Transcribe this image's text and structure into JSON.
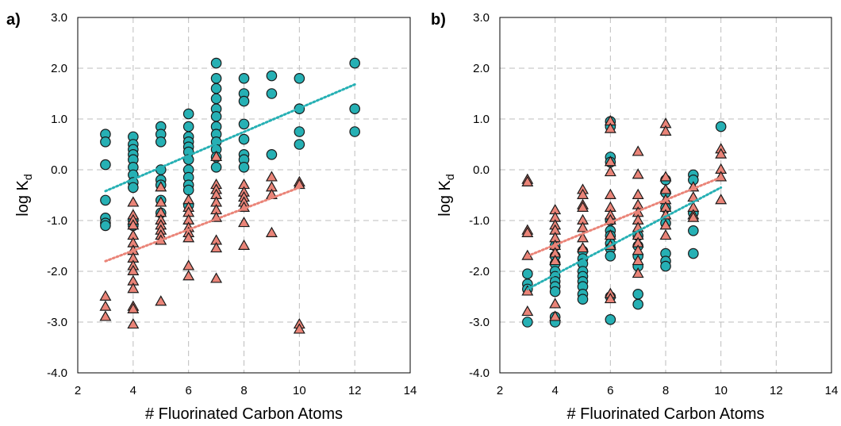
{
  "chart_data": [
    {
      "type": "scatter",
      "panel_label": "a)",
      "xlabel": "# Fluorinated Carbon Atoms",
      "ylabel_main": "log K",
      "ylabel_sub": "d",
      "xlim": [
        2,
        14
      ],
      "ylim": [
        -4,
        3
      ],
      "x_ticks": [
        "2",
        "4",
        "6",
        "8",
        "10",
        "12",
        "14"
      ],
      "y_ticks": [
        "-4.0",
        "-3.0",
        "-2.0",
        "-1.0",
        "0.0",
        "1.0",
        "2.0",
        "3.0"
      ],
      "grid": true,
      "series": [
        {
          "marker": "circle",
          "color": "#26b0b4",
          "points": [
            [
              3,
              0.7
            ],
            [
              3,
              0.55
            ],
            [
              3,
              0.1
            ],
            [
              3,
              -0.6
            ],
            [
              3,
              -0.95
            ],
            [
              3,
              -1.05
            ],
            [
              3,
              -1.1
            ],
            [
              4,
              0.65
            ],
            [
              4,
              0.5
            ],
            [
              4,
              0.4
            ],
            [
              4,
              0.3
            ],
            [
              4,
              0.2
            ],
            [
              4,
              0.05
            ],
            [
              4,
              -0.1
            ],
            [
              4,
              -0.25
            ],
            [
              4,
              -0.35
            ],
            [
              4,
              -1.0
            ],
            [
              4,
              -1.1
            ],
            [
              5,
              0.85
            ],
            [
              5,
              0.7
            ],
            [
              5,
              0.55
            ],
            [
              5,
              0.0
            ],
            [
              5,
              -0.2
            ],
            [
              5,
              -0.3
            ],
            [
              5,
              -0.6
            ],
            [
              5,
              -0.85
            ],
            [
              6,
              1.1
            ],
            [
              6,
              0.85
            ],
            [
              6,
              0.65
            ],
            [
              6,
              0.55
            ],
            [
              6,
              0.45
            ],
            [
              6,
              0.35
            ],
            [
              6,
              0.2
            ],
            [
              6,
              0.0
            ],
            [
              6,
              -0.15
            ],
            [
              6,
              -0.3
            ],
            [
              6,
              -0.4
            ],
            [
              6,
              -0.7
            ],
            [
              7,
              2.1
            ],
            [
              7,
              1.8
            ],
            [
              7,
              1.6
            ],
            [
              7,
              1.4
            ],
            [
              7,
              1.2
            ],
            [
              7,
              1.05
            ],
            [
              7,
              0.85
            ],
            [
              7,
              0.7
            ],
            [
              7,
              0.55
            ],
            [
              7,
              0.4
            ],
            [
              7,
              0.25
            ],
            [
              7,
              0.05
            ],
            [
              8,
              1.8
            ],
            [
              8,
              1.5
            ],
            [
              8,
              1.35
            ],
            [
              8,
              0.9
            ],
            [
              8,
              0.6
            ],
            [
              8,
              0.3
            ],
            [
              8,
              0.2
            ],
            [
              8,
              0.05
            ],
            [
              9,
              1.85
            ],
            [
              9,
              1.5
            ],
            [
              9,
              0.3
            ],
            [
              10,
              1.8
            ],
            [
              10,
              1.2
            ],
            [
              10,
              0.75
            ],
            [
              10,
              0.5
            ],
            [
              12,
              2.1
            ],
            [
              12,
              1.2
            ],
            [
              12,
              0.75
            ]
          ]
        },
        {
          "marker": "triangle",
          "color": "#ea8478",
          "points": [
            [
              3,
              -2.5
            ],
            [
              3,
              -2.7
            ],
            [
              3,
              -2.9
            ],
            [
              4,
              -0.65
            ],
            [
              4,
              -0.9
            ],
            [
              4,
              -1.0
            ],
            [
              4,
              -1.1
            ],
            [
              4,
              -1.3
            ],
            [
              4,
              -1.45
            ],
            [
              4,
              -1.6
            ],
            [
              4,
              -1.75
            ],
            [
              4,
              -1.9
            ],
            [
              4,
              -2.0
            ],
            [
              4,
              -2.2
            ],
            [
              4,
              -2.35
            ],
            [
              4,
              -2.7
            ],
            [
              4,
              -2.75
            ],
            [
              4,
              -3.05
            ],
            [
              5,
              -0.35
            ],
            [
              5,
              -0.65
            ],
            [
              5,
              -0.85
            ],
            [
              5,
              -1.0
            ],
            [
              5,
              -1.1
            ],
            [
              5,
              -1.2
            ],
            [
              5,
              -1.3
            ],
            [
              5,
              -1.4
            ],
            [
              5,
              -2.6
            ],
            [
              6,
              -0.6
            ],
            [
              6,
              -0.75
            ],
            [
              6,
              -0.85
            ],
            [
              6,
              -1.0
            ],
            [
              6,
              -1.15
            ],
            [
              6,
              -1.25
            ],
            [
              6,
              -1.35
            ],
            [
              6,
              -1.9
            ],
            [
              6,
              -2.1
            ],
            [
              7,
              0.25
            ],
            [
              7,
              -0.3
            ],
            [
              7,
              -0.4
            ],
            [
              7,
              -0.5
            ],
            [
              7,
              -0.65
            ],
            [
              7,
              -0.8
            ],
            [
              7,
              -0.95
            ],
            [
              7,
              -1.4
            ],
            [
              7,
              -1.55
            ],
            [
              7,
              -2.15
            ],
            [
              8,
              -0.3
            ],
            [
              8,
              -0.45
            ],
            [
              8,
              -0.55
            ],
            [
              8,
              -0.65
            ],
            [
              8,
              -0.75
            ],
            [
              8,
              -1.05
            ],
            [
              8,
              -1.5
            ],
            [
              9,
              -0.15
            ],
            [
              9,
              -0.35
            ],
            [
              9,
              -0.5
            ],
            [
              9,
              -1.25
            ],
            [
              10,
              -0.25
            ],
            [
              10,
              -0.3
            ],
            [
              10,
              -3.05
            ],
            [
              10,
              -3.15
            ]
          ]
        }
      ],
      "trendlines": [
        {
          "color": "#26b0b4",
          "from": [
            3,
            -0.42
          ],
          "to": [
            12,
            1.68
          ]
        },
        {
          "color": "#ea8478",
          "from": [
            3,
            -1.8
          ],
          "to": [
            10,
            -0.35
          ]
        }
      ]
    },
    {
      "type": "scatter",
      "panel_label": "b)",
      "xlabel": "# Fluorinated Carbon Atoms",
      "ylabel_main": "log K",
      "ylabel_sub": "d",
      "xlim": [
        2,
        14
      ],
      "ylim": [
        -4,
        3
      ],
      "x_ticks": [
        "2",
        "4",
        "6",
        "8",
        "10",
        "12",
        "14"
      ],
      "y_ticks": [
        "-4.0",
        "-3.0",
        "-2.0",
        "-1.0",
        "0.0",
        "1.0",
        "2.0",
        "3.0"
      ],
      "grid": true,
      "series": [
        {
          "marker": "circle",
          "color": "#26b0b4",
          "points": [
            [
              3,
              -2.05
            ],
            [
              3,
              -2.25
            ],
            [
              3,
              -2.35
            ],
            [
              3,
              -3.0
            ],
            [
              4,
              -1.5
            ],
            [
              4,
              -1.7
            ],
            [
              4,
              -1.85
            ],
            [
              4,
              -2.0
            ],
            [
              4,
              -2.1
            ],
            [
              4,
              -2.2
            ],
            [
              4,
              -2.3
            ],
            [
              4,
              -2.4
            ],
            [
              4,
              -2.9
            ],
            [
              4,
              -3.0
            ],
            [
              5,
              -1.6
            ],
            [
              5,
              -1.75
            ],
            [
              5,
              -1.85
            ],
            [
              5,
              -2.0
            ],
            [
              5,
              -2.1
            ],
            [
              5,
              -2.2
            ],
            [
              5,
              -2.3
            ],
            [
              5,
              -2.45
            ],
            [
              5,
              -2.55
            ],
            [
              6,
              0.95
            ],
            [
              6,
              0.85
            ],
            [
              6,
              0.25
            ],
            [
              6,
              0.15
            ],
            [
              6,
              -1.0
            ],
            [
              6,
              -1.2
            ],
            [
              6,
              -1.3
            ],
            [
              6,
              -1.45
            ],
            [
              6,
              -1.55
            ],
            [
              6,
              -1.7
            ],
            [
              6,
              -2.5
            ],
            [
              6,
              -2.95
            ],
            [
              7,
              -1.3
            ],
            [
              7,
              -1.5
            ],
            [
              7,
              -1.7
            ],
            [
              7,
              -1.9
            ],
            [
              7,
              -2.45
            ],
            [
              7,
              -2.65
            ],
            [
              8,
              -0.2
            ],
            [
              8,
              -0.45
            ],
            [
              8,
              -0.75
            ],
            [
              8,
              -1.05
            ],
            [
              8,
              -1.65
            ],
            [
              8,
              -1.8
            ],
            [
              8,
              -1.9
            ],
            [
              9,
              -0.1
            ],
            [
              9,
              -0.2
            ],
            [
              9,
              -0.85
            ],
            [
              9,
              -1.2
            ],
            [
              9,
              -1.65
            ],
            [
              10,
              0.85
            ]
          ]
        },
        {
          "marker": "triangle",
          "color": "#ea8478",
          "points": [
            [
              3,
              -0.2
            ],
            [
              3,
              -0.25
            ],
            [
              3,
              -1.2
            ],
            [
              3,
              -1.25
            ],
            [
              3,
              -1.7
            ],
            [
              3,
              -2.4
            ],
            [
              3,
              -2.8
            ],
            [
              4,
              -0.8
            ],
            [
              4,
              -0.95
            ],
            [
              4,
              -1.1
            ],
            [
              4,
              -1.2
            ],
            [
              4,
              -1.35
            ],
            [
              4,
              -1.5
            ],
            [
              4,
              -1.65
            ],
            [
              4,
              -1.8
            ],
            [
              4,
              -2.65
            ],
            [
              4,
              -2.9
            ],
            [
              5,
              -0.4
            ],
            [
              5,
              -0.5
            ],
            [
              5,
              -0.7
            ],
            [
              5,
              -0.75
            ],
            [
              5,
              -1.0
            ],
            [
              5,
              -1.15
            ],
            [
              5,
              -1.35
            ],
            [
              5,
              -1.55
            ],
            [
              6,
              0.95
            ],
            [
              6,
              0.8
            ],
            [
              6,
              0.15
            ],
            [
              6,
              -0.05
            ],
            [
              6,
              -0.5
            ],
            [
              6,
              -0.75
            ],
            [
              6,
              -0.9
            ],
            [
              6,
              -1.0
            ],
            [
              6,
              -1.3
            ],
            [
              6,
              -1.5
            ],
            [
              6,
              -2.45
            ],
            [
              6,
              -2.55
            ],
            [
              7,
              0.35
            ],
            [
              7,
              -0.1
            ],
            [
              7,
              -0.5
            ],
            [
              7,
              -0.7
            ],
            [
              7,
              -0.85
            ],
            [
              7,
              -1.0
            ],
            [
              7,
              -1.15
            ],
            [
              7,
              -1.3
            ],
            [
              7,
              -1.45
            ],
            [
              7,
              -1.6
            ],
            [
              7,
              -1.8
            ],
            [
              7,
              -2.05
            ],
            [
              8,
              0.9
            ],
            [
              8,
              0.75
            ],
            [
              8,
              -0.15
            ],
            [
              8,
              -0.4
            ],
            [
              8,
              -0.6
            ],
            [
              8,
              -0.75
            ],
            [
              8,
              -0.9
            ],
            [
              8,
              -1.1
            ],
            [
              8,
              -1.3
            ],
            [
              9,
              -0.35
            ],
            [
              9,
              -0.55
            ],
            [
              9,
              -0.75
            ],
            [
              9,
              -0.9
            ],
            [
              9,
              -0.95
            ],
            [
              10,
              0.4
            ],
            [
              10,
              0.3
            ],
            [
              10,
              0.0
            ],
            [
              10,
              -0.15
            ],
            [
              10,
              -0.6
            ]
          ]
        }
      ],
      "trendlines": [
        {
          "color": "#ea8478",
          "from": [
            3,
            -1.7
          ],
          "to": [
            10,
            -0.15
          ]
        },
        {
          "color": "#26b0b4",
          "from": [
            3,
            -2.35
          ],
          "to": [
            10,
            -0.35
          ]
        }
      ]
    }
  ]
}
